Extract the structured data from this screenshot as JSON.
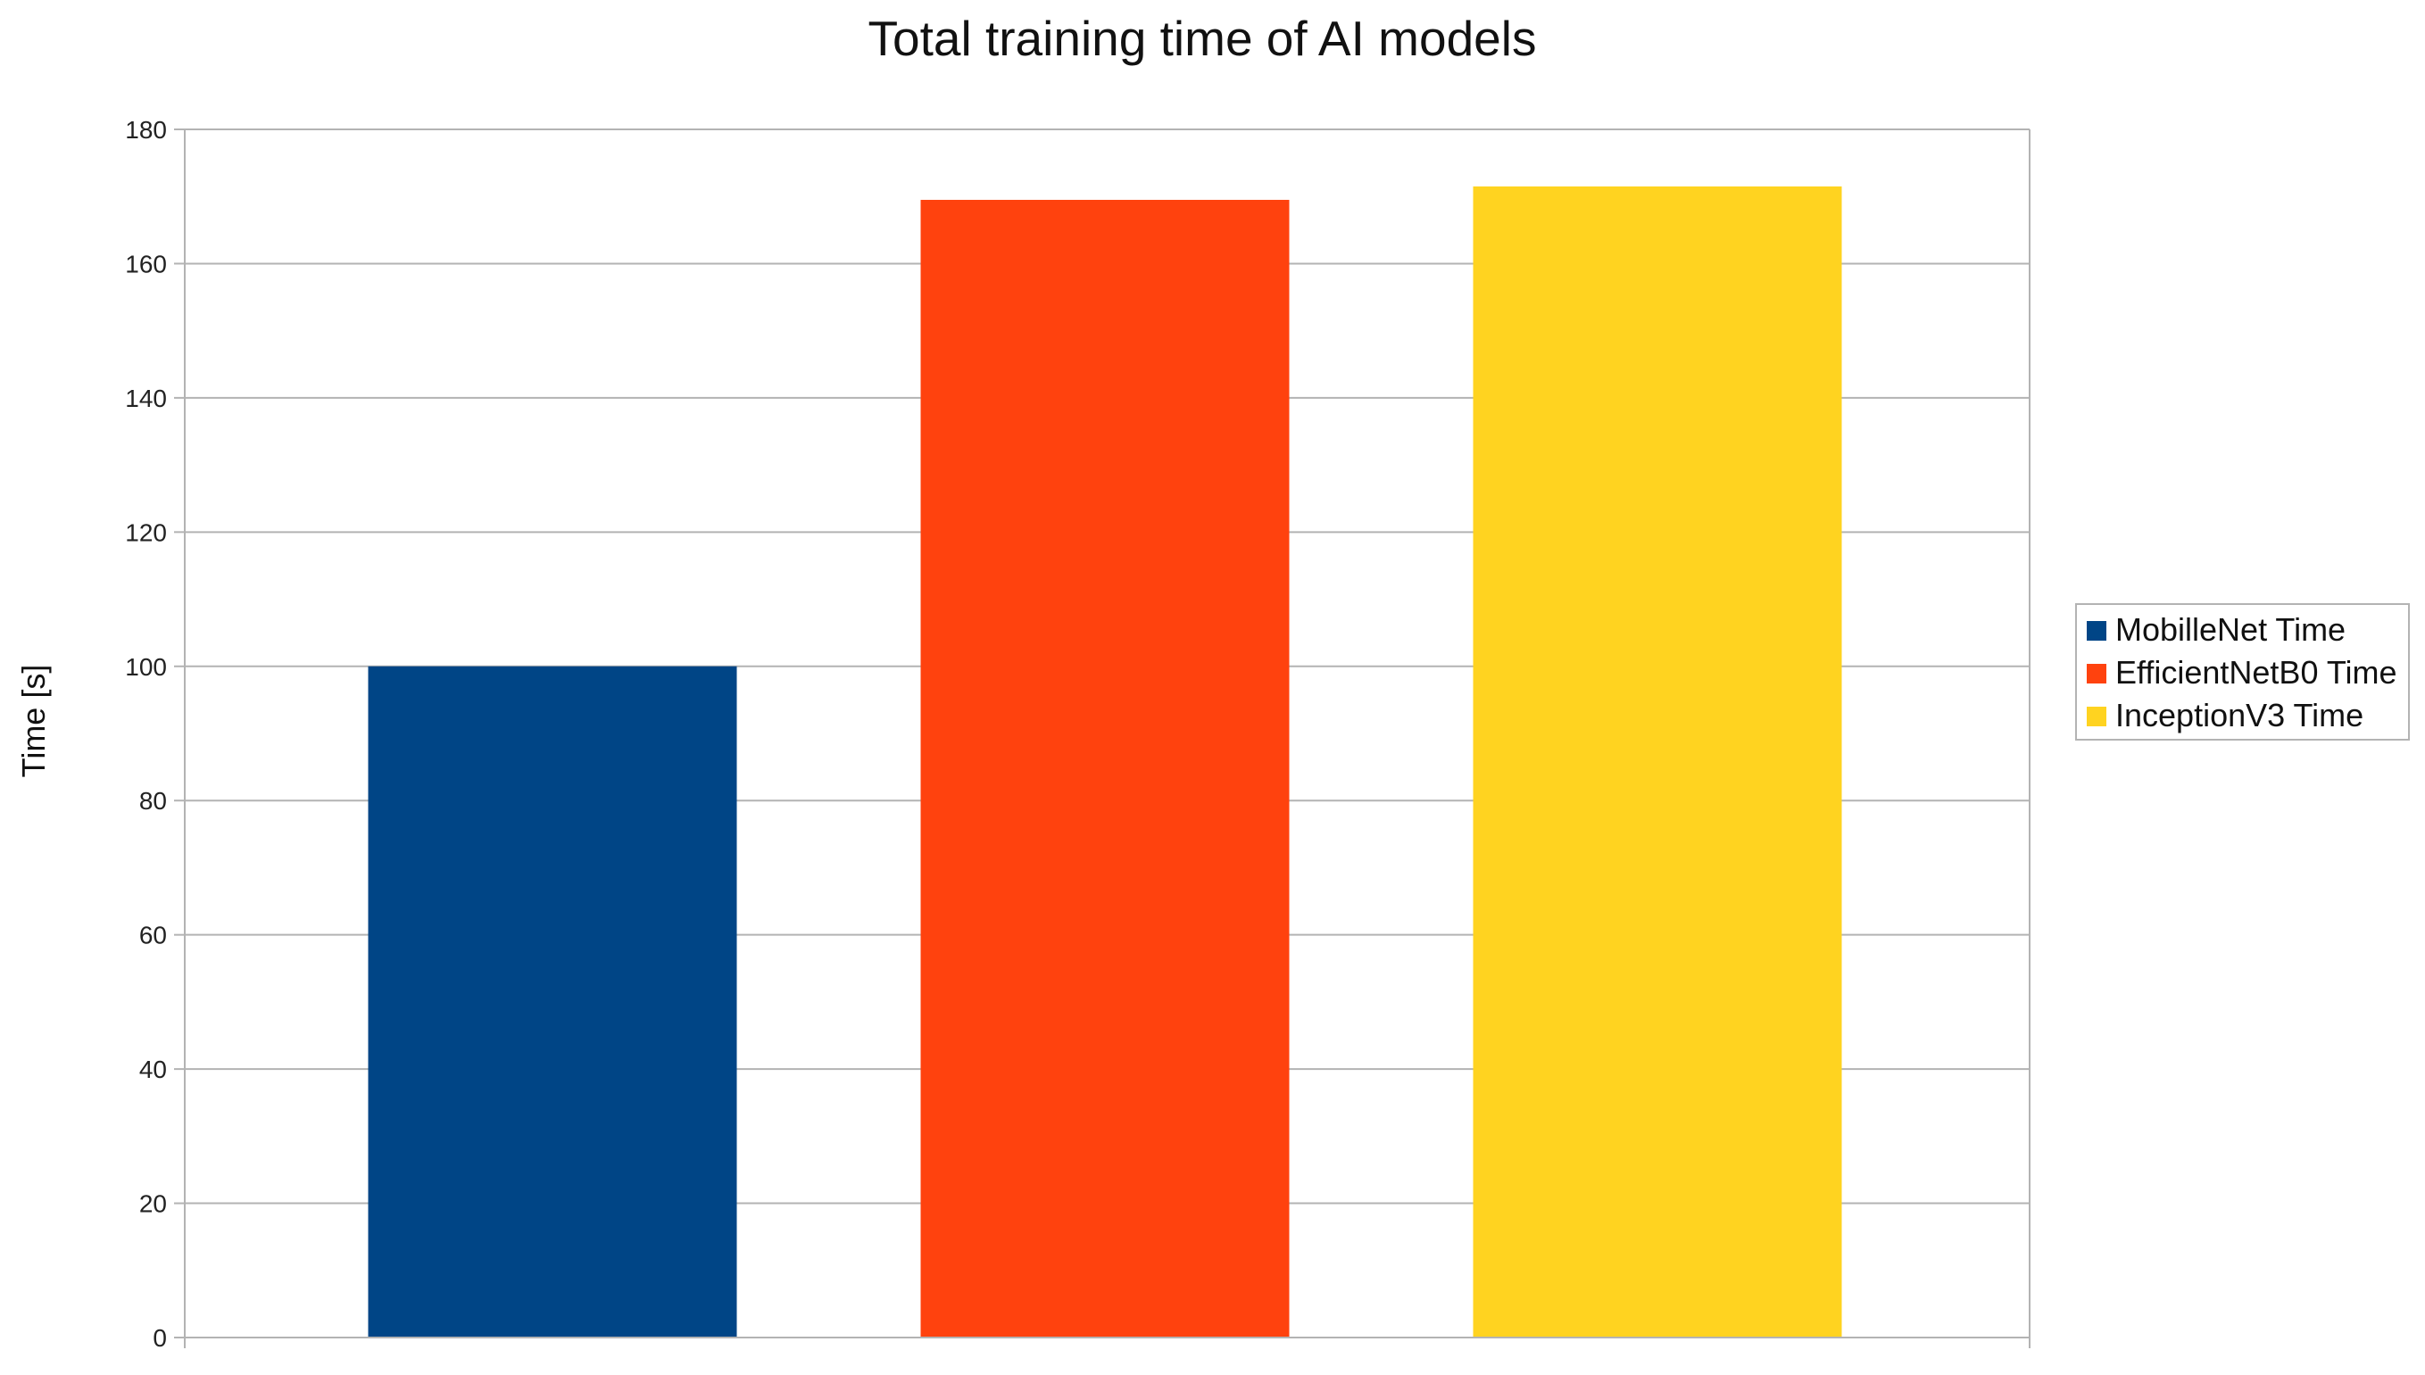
{
  "chart_data": {
    "type": "bar",
    "title": "Total training time of AI models",
    "xlabel": "",
    "ylabel": "Time [s]",
    "ylim": [
      0,
      180
    ],
    "yticks": [
      0,
      20,
      40,
      60,
      80,
      100,
      120,
      140,
      160,
      180
    ],
    "grid": true,
    "legend_position": "right",
    "series": [
      {
        "name": "MobilleNet Time",
        "value": 100,
        "color": "#004586"
      },
      {
        "name": "EfficientNetB0 Time",
        "value": 169.5,
        "color": "#ff420e"
      },
      {
        "name": "InceptionV3 Time",
        "value": 171.5,
        "color": "#ffd320"
      }
    ]
  }
}
